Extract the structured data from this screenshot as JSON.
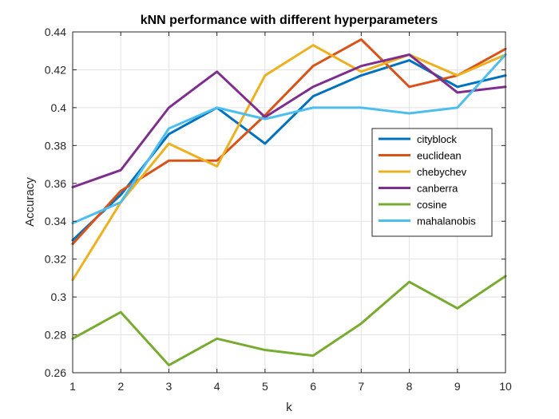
{
  "chart_data": {
    "type": "line",
    "title": "kNN performance with different hyperparameters",
    "xlabel": "k",
    "ylabel": "Accuracy",
    "x": [
      1,
      2,
      3,
      4,
      5,
      6,
      7,
      8,
      9,
      10
    ],
    "xlim": [
      1,
      10
    ],
    "ylim": [
      0.26,
      0.44
    ],
    "xticks": [
      "1",
      "2",
      "3",
      "4",
      "5",
      "6",
      "7",
      "8",
      "9",
      "10"
    ],
    "yticks": [
      "0.26",
      "0.28",
      "0.3",
      "0.32",
      "0.34",
      "0.36",
      "0.38",
      "0.4",
      "0.42",
      "0.44"
    ],
    "grid": true,
    "legend_position": "right",
    "series": [
      {
        "name": "cityblock",
        "color": "#0072BD",
        "values": [
          0.33,
          0.354,
          0.386,
          0.4,
          0.381,
          0.406,
          0.417,
          0.425,
          0.411,
          0.417
        ]
      },
      {
        "name": "euclidean",
        "color": "#D95319",
        "values": [
          0.328,
          0.356,
          0.372,
          0.372,
          0.396,
          0.422,
          0.436,
          0.411,
          0.417,
          0.431
        ]
      },
      {
        "name": "chebychev",
        "color": "#EDB120",
        "values": [
          0.309,
          0.35,
          0.381,
          0.369,
          0.417,
          0.433,
          0.419,
          0.428,
          0.417,
          0.428
        ]
      },
      {
        "name": "canberra",
        "color": "#7E2F8E",
        "values": [
          0.358,
          0.367,
          0.4,
          0.419,
          0.395,
          0.411,
          0.422,
          0.428,
          0.408,
          0.411
        ]
      },
      {
        "name": "cosine",
        "color": "#77AC30",
        "values": [
          0.278,
          0.292,
          0.264,
          0.278,
          0.272,
          0.269,
          0.286,
          0.308,
          0.294,
          0.311
        ]
      },
      {
        "name": "mahalanobis",
        "color": "#4DBEEE",
        "values": [
          0.339,
          0.35,
          0.389,
          0.4,
          0.394,
          0.4,
          0.4,
          0.397,
          0.4,
          0.428
        ]
      }
    ]
  }
}
